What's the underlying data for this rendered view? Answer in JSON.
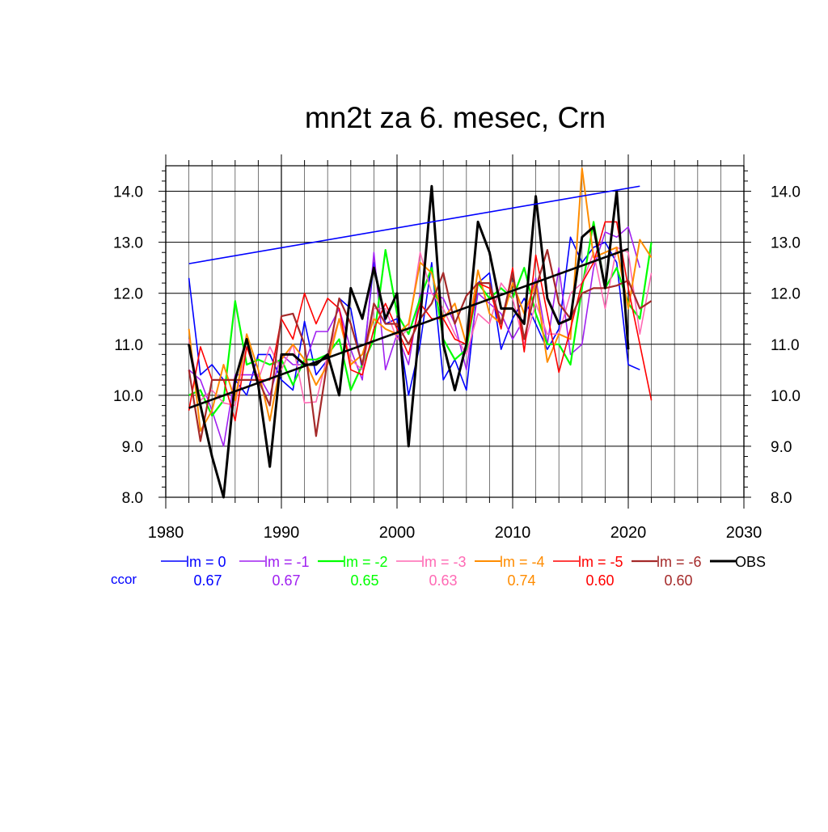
{
  "chart_data": {
    "type": "line",
    "title": "mn2t za 6. mesec, Crn",
    "xlabel": "",
    "ylabel": "",
    "xlim": [
      1980,
      2030
    ],
    "ylim": [
      8.0,
      14.5
    ],
    "xticks": [
      1980,
      1990,
      2000,
      2010,
      2020,
      2030
    ],
    "xtick_labels": [
      "1980",
      "1990",
      "2000",
      "2010",
      "2020",
      "2030"
    ],
    "yticks": [
      8.0,
      9.0,
      10.0,
      11.0,
      12.0,
      13.0,
      14.0
    ],
    "ytick_labels": [
      "8.0",
      "9.0",
      "10.0",
      "11.0",
      "12.0",
      "13.0",
      "14.0"
    ],
    "grid": true,
    "legend_position": "bottom",
    "ccor_label": "ccor",
    "ccor_color": "#0000ff",
    "series": [
      {
        "name": "lm = 0",
        "color": "#0000ff",
        "width": 1.6,
        "ccor": "0.67",
        "x": [
          1982,
          1983,
          1984,
          1985,
          1986,
          1987,
          1988,
          1989,
          1990,
          1991,
          1992,
          1993,
          1994,
          1995,
          1996,
          1997,
          1998,
          1999,
          2000,
          2001,
          2002,
          2003,
          2004,
          2005,
          2006,
          2007,
          2008,
          2009,
          2010,
          2011,
          2012,
          2013,
          2014,
          2015,
          2016,
          2017,
          2018,
          2019,
          2020,
          2021
        ],
        "values": [
          12.3,
          10.4,
          10.6,
          10.3,
          10.3,
          10.0,
          10.8,
          10.8,
          10.3,
          10.1,
          11.45,
          10.4,
          10.7,
          11.9,
          11.7,
          10.5,
          12.6,
          11.4,
          11.5,
          10.0,
          11.0,
          12.6,
          10.3,
          10.7,
          10.1,
          12.2,
          12.4,
          10.9,
          11.5,
          11.9,
          11.4,
          10.9,
          11.3,
          13.1,
          12.6,
          12.9,
          13.0,
          12.6,
          10.6,
          10.5
        ]
      },
      {
        "name": "lm = -1",
        "color": "#a020f0",
        "width": 1.6,
        "ccor": "0.67",
        "x": [
          1982,
          1983,
          1984,
          1985,
          1986,
          1987,
          1988,
          1989,
          1990,
          1991,
          1992,
          1993,
          1994,
          1995,
          1996,
          1997,
          1998,
          1999,
          2000,
          2001,
          2002,
          2003,
          2004,
          2005,
          2006,
          2007,
          2008,
          2009,
          2010,
          2011,
          2012,
          2013,
          2014,
          2015,
          2016,
          2017,
          2018,
          2019,
          2020,
          2021
        ],
        "values": [
          10.5,
          10.3,
          9.7,
          9.0,
          10.4,
          10.4,
          10.4,
          10.0,
          10.8,
          10.6,
          10.6,
          11.25,
          11.25,
          11.7,
          10.9,
          10.3,
          12.8,
          10.5,
          11.2,
          10.6,
          12.0,
          12.0,
          11.9,
          11.4,
          10.5,
          12.0,
          11.8,
          11.6,
          11.1,
          11.5,
          12.3,
          11.0,
          12.5,
          10.8,
          11.0,
          12.5,
          13.2,
          13.1,
          13.3,
          12.5
        ]
      },
      {
        "name": "lm = -2",
        "color": "#00ff00",
        "width": 2.2,
        "ccor": "0.65",
        "x": [
          1982,
          1983,
          1984,
          1985,
          1986,
          1987,
          1988,
          1989,
          1990,
          1991,
          1992,
          1993,
          1994,
          1995,
          1996,
          1997,
          1998,
          1999,
          2000,
          2001,
          2002,
          2003,
          2004,
          2005,
          2006,
          2007,
          2008,
          2009,
          2010,
          2011,
          2012,
          2013,
          2014,
          2015,
          2016,
          2017,
          2018,
          2019,
          2020,
          2021,
          2022
        ],
        "values": [
          10.0,
          10.1,
          9.6,
          9.9,
          11.85,
          10.6,
          10.7,
          10.6,
          10.7,
          10.2,
          10.7,
          10.7,
          10.8,
          11.1,
          10.1,
          10.6,
          11.1,
          12.85,
          11.6,
          11.2,
          11.9,
          12.5,
          11.1,
          10.7,
          10.9,
          12.2,
          11.9,
          12.1,
          11.9,
          12.5,
          11.6,
          11.0,
          11.0,
          10.6,
          12.1,
          13.4,
          12.1,
          12.5,
          11.8,
          11.5,
          13.0
        ]
      },
      {
        "name": "lm = -3",
        "color": "#ff69b4",
        "width": 1.6,
        "ccor": "0.63",
        "x": [
          1982,
          1983,
          1984,
          1985,
          1986,
          1987,
          1988,
          1989,
          1990,
          1991,
          1992,
          1993,
          1994,
          1995,
          1996,
          1997,
          1998,
          1999,
          2000,
          2001,
          2002,
          2003,
          2004,
          2005,
          2006,
          2007,
          2008,
          2009,
          2010,
          2011,
          2012,
          2013,
          2014,
          2015,
          2016,
          2017,
          2018,
          2019,
          2020,
          2021,
          2022
        ],
        "values": [
          11.1,
          9.9,
          10.1,
          9.85,
          9.8,
          11.1,
          10.3,
          10.95,
          10.5,
          11.0,
          9.85,
          9.87,
          10.8,
          11.5,
          10.7,
          10.5,
          11.7,
          11.7,
          11.1,
          11.3,
          12.8,
          12.0,
          11.7,
          11.2,
          10.8,
          11.6,
          11.4,
          12.2,
          11.9,
          11.0,
          11.8,
          11.2,
          11.2,
          12.0,
          12.2,
          12.8,
          11.7,
          12.9,
          12.8,
          11.2,
          12.4
        ]
      },
      {
        "name": "lm = -4",
        "color": "#ff8c00",
        "width": 2.0,
        "ccor": "0.74",
        "x": [
          1982,
          1983,
          1984,
          1985,
          1986,
          1987,
          1988,
          1989,
          1990,
          1991,
          1992,
          1993,
          1994,
          1995,
          1996,
          1997,
          1998,
          1999,
          2000,
          2001,
          2002,
          2003,
          2004,
          2005,
          2006,
          2007,
          2008,
          2009,
          2010,
          2011,
          2012,
          2013,
          2014,
          2015,
          2016,
          2017,
          2018,
          2019,
          2020,
          2021,
          2022
        ],
        "values": [
          11.3,
          9.3,
          9.7,
          10.6,
          9.9,
          11.2,
          10.5,
          9.5,
          10.7,
          11.0,
          10.7,
          10.2,
          10.6,
          11.5,
          10.6,
          10.8,
          11.5,
          11.3,
          11.2,
          11.4,
          12.6,
          12.4,
          11.5,
          11.8,
          11.0,
          12.45,
          11.6,
          11.4,
          12.2,
          11.6,
          12.2,
          10.65,
          11.2,
          11.1,
          14.45,
          12.7,
          12.8,
          12.9,
          11.7,
          13.05,
          12.7
        ]
      },
      {
        "name": "lm = -5",
        "color": "#ff0000",
        "width": 1.6,
        "ccor": "0.60",
        "x": [
          1982,
          1983,
          1984,
          1985,
          1986,
          1987,
          1988,
          1989,
          1990,
          1991,
          1992,
          1993,
          1994,
          1995,
          1996,
          1997,
          1998,
          1999,
          2000,
          2001,
          2002,
          2003,
          2004,
          2005,
          2006,
          2007,
          2008,
          2009,
          2010,
          2011,
          2012,
          2013,
          2014,
          2015,
          2016,
          2017,
          2018,
          2019,
          2020,
          2021,
          2022
        ],
        "values": [
          9.7,
          10.95,
          10.3,
          10.3,
          9.5,
          10.95,
          10.3,
          10.3,
          11.5,
          11.1,
          12.0,
          11.4,
          11.9,
          11.7,
          10.5,
          10.4,
          11.3,
          11.8,
          11.3,
          10.8,
          11.8,
          11.5,
          11.5,
          11.1,
          11.0,
          12.2,
          12.1,
          11.3,
          12.5,
          10.85,
          12.75,
          11.6,
          10.45,
          11.3,
          12.2,
          12.6,
          13.4,
          13.4,
          12.1,
          11.0,
          9.9
        ]
      },
      {
        "name": "lm = -6",
        "color": "#a52a2a",
        "width": 2.2,
        "ccor": "0.60",
        "x": [
          1982,
          1983,
          1984,
          1985,
          1986,
          1987,
          1988,
          1989,
          1990,
          1991,
          1992,
          1993,
          1994,
          1995,
          1996,
          1997,
          1998,
          1999,
          2000,
          2001,
          2002,
          2003,
          2004,
          2005,
          2006,
          2007,
          2008,
          2009,
          2010,
          2011,
          2012,
          2013,
          2014,
          2015,
          2016,
          2017,
          2018,
          2019,
          2020,
          2021,
          2022
        ],
        "values": [
          10.5,
          9.1,
          10.3,
          10.3,
          10.3,
          10.3,
          10.3,
          9.8,
          11.55,
          11.6,
          11.0,
          9.2,
          10.7,
          11.9,
          11.4,
          10.6,
          11.8,
          11.4,
          11.4,
          11.0,
          11.5,
          11.8,
          12.4,
          11.4,
          11.95,
          12.2,
          12.2,
          11.4,
          12.4,
          11.1,
          12.1,
          12.85,
          11.8,
          11.5,
          12.0,
          12.1,
          12.1,
          12.15,
          12.25,
          11.7,
          11.85
        ]
      },
      {
        "name": "OBS",
        "color": "#000000",
        "width": 3.0,
        "ccor": "",
        "x": [
          1982,
          1983,
          1984,
          1985,
          1986,
          1987,
          1988,
          1989,
          1990,
          1991,
          1992,
          1993,
          1994,
          1995,
          1996,
          1997,
          1998,
          1999,
          2000,
          2001,
          2002,
          2003,
          2004,
          2005,
          2006,
          2007,
          2008,
          2009,
          2010,
          2011,
          2012,
          2013,
          2014,
          2015,
          2016,
          2017,
          2018,
          2019,
          2020
        ],
        "values": [
          11.0,
          9.8,
          8.8,
          8.0,
          10.3,
          11.1,
          10.2,
          8.6,
          10.8,
          10.8,
          10.6,
          10.6,
          10.8,
          10.0,
          12.1,
          11.5,
          12.5,
          11.5,
          12.0,
          9.0,
          11.5,
          14.1,
          11.0,
          10.1,
          11.0,
          13.4,
          12.8,
          11.7,
          11.7,
          11.4,
          13.9,
          11.9,
          11.4,
          11.5,
          13.1,
          13.3,
          12.1,
          14.0,
          10.9
        ]
      }
    ],
    "trend_lines": [
      {
        "series": "lm = 0",
        "color": "#0000ff",
        "width": 1.6,
        "x": [
          1982,
          2021
        ],
        "values": [
          12.58,
          14.1
        ]
      },
      {
        "series": "OBS",
        "color": "#000000",
        "width": 2.6,
        "x": [
          1982,
          2020
        ],
        "values": [
          9.75,
          12.87
        ]
      }
    ]
  }
}
